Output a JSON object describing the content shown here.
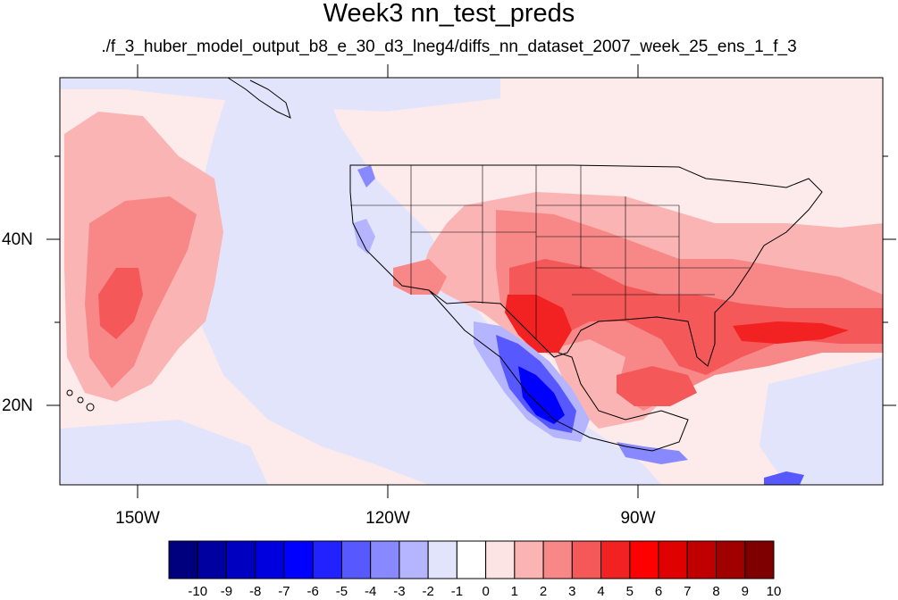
{
  "title": "Week3 nn_test_preds",
  "subtitle": "./f_3_huber_model_output_b8_e_30_d3_lneg4/diffs_nn_dataset_2007_week_25_ens_1_f_3",
  "lat_labels": [
    "40N",
    "20N"
  ],
  "lon_labels": [
    "150W",
    "120W",
    "90W"
  ],
  "colorbar": {
    "labels": [
      "-10",
      "-9",
      "-8",
      "-7",
      "-6",
      "-5",
      "-4",
      "-3",
      "-2",
      "-1",
      "0",
      "1",
      "2",
      "3",
      "4",
      "5",
      "6",
      "7",
      "8",
      "9",
      "10"
    ],
    "colors": [
      "#00007f",
      "#0000a0",
      "#0000c0",
      "#0000df",
      "#0000ff",
      "#2222ff",
      "#5858ff",
      "#8888ff",
      "#b4b4ff",
      "#e2e4fb",
      "#ffffff",
      "#fde4e4",
      "#fbb4b4",
      "#f88888",
      "#f45858",
      "#f22222",
      "#ff0000",
      "#df0000",
      "#c00000",
      "#a00000",
      "#7f0000"
    ]
  }
}
